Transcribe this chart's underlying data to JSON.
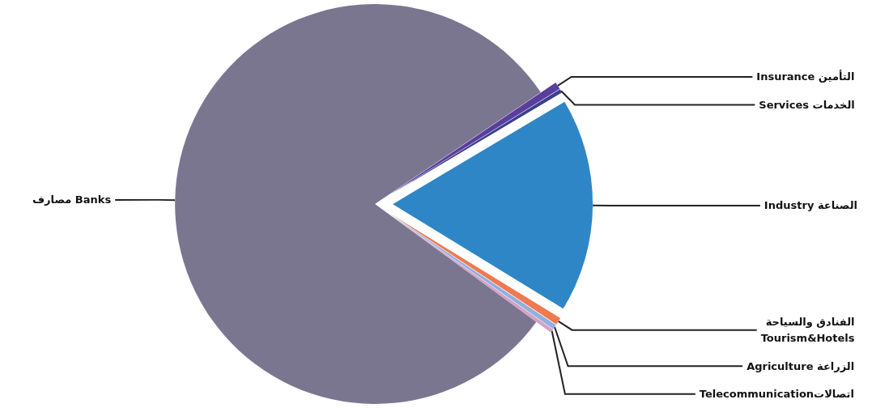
{
  "chart_data": {
    "type": "pie",
    "categories": [
      "Insurance التأمين",
      "Services الخدمات",
      "Industry الصناعة",
      "الفنادق والسياحة\nTourism&Hotels",
      "Agriculture الزراعة",
      "Telecommunicationاتصالات",
      "مصارف Banks"
    ],
    "values": [
      0.6,
      0.3,
      17.3,
      0.6,
      0.4,
      0.3,
      80.5
    ],
    "colors": [
      "#5a3e9e",
      "#3b3f8f",
      "#2f86c6",
      "#ee7a4f",
      "#8fb0e0",
      "#d8a0c4",
      "#7b7690"
    ]
  }
}
